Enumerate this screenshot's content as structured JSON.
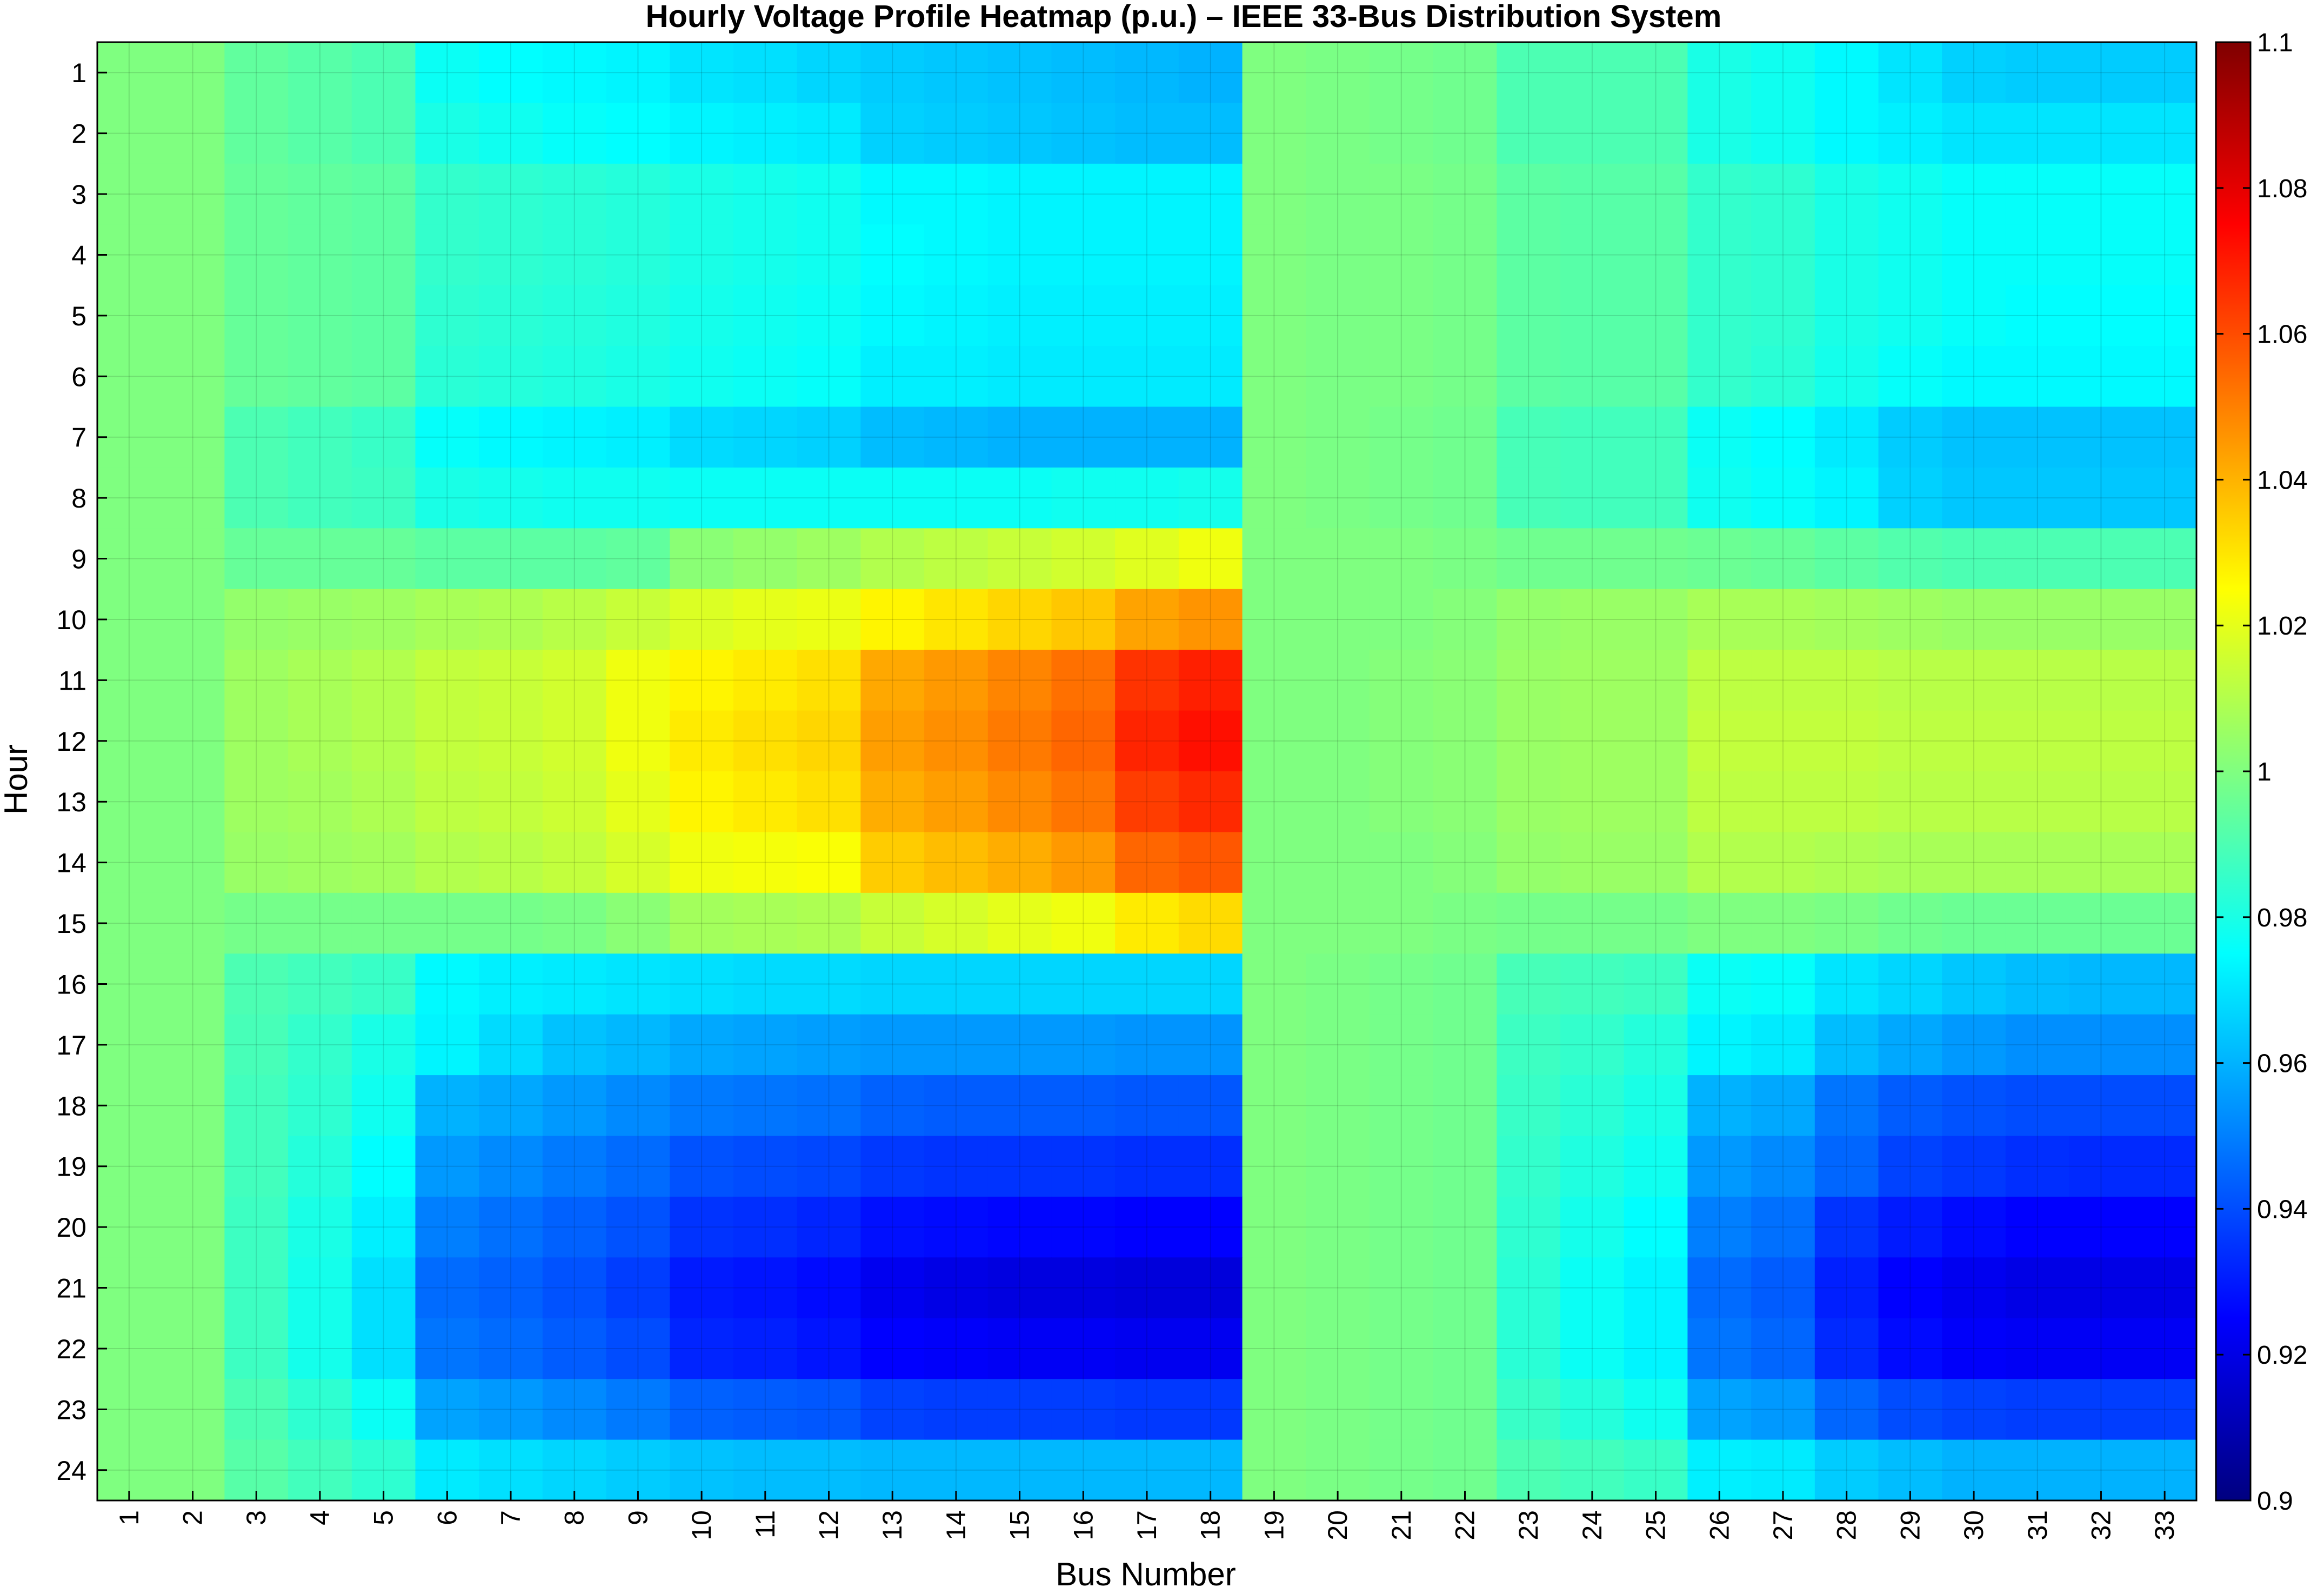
{
  "chart_data": {
    "type": "heatmap",
    "title": "Hourly Voltage Profile Heatmap (p.u.) – IEEE 33-Bus Distribution System",
    "xlabel": "Bus Number",
    "ylabel": "Hour",
    "x": [
      1,
      2,
      3,
      4,
      5,
      6,
      7,
      8,
      9,
      10,
      11,
      12,
      13,
      14,
      15,
      16,
      17,
      18,
      19,
      20,
      21,
      22,
      23,
      24,
      25,
      26,
      27,
      28,
      29,
      30,
      31,
      32,
      33
    ],
    "y": [
      1,
      2,
      3,
      4,
      5,
      6,
      7,
      8,
      9,
      10,
      11,
      12,
      13,
      14,
      15,
      16,
      17,
      18,
      19,
      20,
      21,
      22,
      23,
      24
    ],
    "grid": true,
    "colorbar": {
      "colormap": "jet",
      "position": "right",
      "clim": [
        0.9,
        1.1
      ],
      "ticks": [
        "0.9",
        "0.92",
        "0.94",
        "0.96",
        "0.98",
        "1",
        "1.02",
        "1.04",
        "1.06",
        "1.08",
        "1.1"
      ]
    },
    "values": [
      [
        1.0,
        1.0,
        0.994,
        0.992,
        0.99,
        0.977,
        0.975,
        0.974,
        0.973,
        0.97,
        0.969,
        0.967,
        0.965,
        0.964,
        0.963,
        0.962,
        0.961,
        0.96,
        1.0,
        0.999,
        0.998,
        0.997,
        0.99,
        0.99,
        0.99,
        0.98,
        0.978,
        0.974,
        0.97,
        0.966,
        0.965,
        0.965,
        0.965
      ],
      [
        1.0,
        1.0,
        0.994,
        0.992,
        0.99,
        0.98,
        0.978,
        0.976,
        0.975,
        0.973,
        0.972,
        0.971,
        0.966,
        0.965,
        0.964,
        0.963,
        0.962,
        0.962,
        1.0,
        0.999,
        0.998,
        0.997,
        0.99,
        0.99,
        0.99,
        0.98,
        0.978,
        0.974,
        0.972,
        0.97,
        0.97,
        0.97,
        0.97
      ],
      [
        1.0,
        1.0,
        0.995,
        0.994,
        0.993,
        0.985,
        0.984,
        0.983,
        0.982,
        0.98,
        0.979,
        0.978,
        0.974,
        0.974,
        0.973,
        0.973,
        0.973,
        0.973,
        1.0,
        0.999,
        0.999,
        0.998,
        0.993,
        0.992,
        0.992,
        0.985,
        0.984,
        0.98,
        0.978,
        0.976,
        0.976,
        0.976,
        0.976
      ],
      [
        1.0,
        1.0,
        0.995,
        0.994,
        0.993,
        0.985,
        0.984,
        0.983,
        0.982,
        0.98,
        0.979,
        0.978,
        0.975,
        0.974,
        0.973,
        0.973,
        0.973,
        0.973,
        1.0,
        0.999,
        0.999,
        0.998,
        0.993,
        0.992,
        0.992,
        0.985,
        0.984,
        0.98,
        0.978,
        0.976,
        0.976,
        0.976,
        0.976
      ],
      [
        1.0,
        1.0,
        0.995,
        0.994,
        0.993,
        0.984,
        0.983,
        0.982,
        0.981,
        0.979,
        0.978,
        0.977,
        0.974,
        0.973,
        0.972,
        0.972,
        0.972,
        0.972,
        1.0,
        0.999,
        0.999,
        0.998,
        0.993,
        0.992,
        0.992,
        0.985,
        0.984,
        0.98,
        0.978,
        0.976,
        0.975,
        0.975,
        0.975
      ],
      [
        1.0,
        1.0,
        0.995,
        0.994,
        0.993,
        0.983,
        0.982,
        0.981,
        0.98,
        0.978,
        0.977,
        0.976,
        0.972,
        0.972,
        0.971,
        0.971,
        0.971,
        0.971,
        1.0,
        0.999,
        0.999,
        0.998,
        0.993,
        0.992,
        0.992,
        0.985,
        0.983,
        0.979,
        0.976,
        0.974,
        0.974,
        0.974,
        0.974
      ],
      [
        1.0,
        1.0,
        0.99,
        0.988,
        0.986,
        0.976,
        0.974,
        0.973,
        0.972,
        0.968,
        0.967,
        0.966,
        0.962,
        0.961,
        0.96,
        0.96,
        0.96,
        0.96,
        1.0,
        0.999,
        0.998,
        0.997,
        0.989,
        0.988,
        0.988,
        0.977,
        0.975,
        0.971,
        0.965,
        0.963,
        0.963,
        0.963,
        0.963
      ],
      [
        1.0,
        1.0,
        0.99,
        0.988,
        0.987,
        0.98,
        0.979,
        0.978,
        0.978,
        0.977,
        0.977,
        0.977,
        0.977,
        0.977,
        0.977,
        0.978,
        0.978,
        0.979,
        1.0,
        0.999,
        0.998,
        0.997,
        0.989,
        0.988,
        0.988,
        0.978,
        0.976,
        0.973,
        0.966,
        0.964,
        0.964,
        0.964,
        0.964
      ],
      [
        1.0,
        1.0,
        0.995,
        0.995,
        0.995,
        0.993,
        0.993,
        0.993,
        0.994,
        1.002,
        1.004,
        1.006,
        1.01,
        1.012,
        1.014,
        1.016,
        1.019,
        1.022,
        1.0,
        1.0,
        1.0,
        0.999,
        0.997,
        0.997,
        0.997,
        0.996,
        0.995,
        0.993,
        0.991,
        0.99,
        0.99,
        0.99,
        0.99
      ],
      [
        1.0,
        1.0,
        1.004,
        1.005,
        1.006,
        1.008,
        1.009,
        1.011,
        1.014,
        1.018,
        1.02,
        1.021,
        1.027,
        1.03,
        1.033,
        1.036,
        1.043,
        1.046,
        1.0,
        1.0,
        1.0,
        1.001,
        1.004,
        1.005,
        1.005,
        1.008,
        1.008,
        1.007,
        1.006,
        1.005,
        1.005,
        1.005,
        1.005
      ],
      [
        1.0,
        1.0,
        1.006,
        1.008,
        1.01,
        1.013,
        1.014,
        1.016,
        1.022,
        1.027,
        1.029,
        1.031,
        1.042,
        1.045,
        1.049,
        1.053,
        1.065,
        1.069,
        1.0,
        1.0,
        1.001,
        1.002,
        1.005,
        1.006,
        1.006,
        1.012,
        1.012,
        1.012,
        1.011,
        1.011,
        1.011,
        1.011,
        1.011
      ],
      [
        1.0,
        1.0,
        1.006,
        1.008,
        1.01,
        1.013,
        1.014,
        1.016,
        1.022,
        1.029,
        1.031,
        1.033,
        1.044,
        1.047,
        1.051,
        1.055,
        1.068,
        1.072,
        1.0,
        1.0,
        1.001,
        1.002,
        1.005,
        1.006,
        1.006,
        1.013,
        1.013,
        1.013,
        1.012,
        1.012,
        1.012,
        1.012,
        1.012
      ],
      [
        1.0,
        1.0,
        1.006,
        1.007,
        1.009,
        1.012,
        1.013,
        1.015,
        1.02,
        1.027,
        1.029,
        1.031,
        1.041,
        1.044,
        1.048,
        1.052,
        1.063,
        1.067,
        1.0,
        1.0,
        1.001,
        1.002,
        1.005,
        1.006,
        1.006,
        1.012,
        1.012,
        1.012,
        1.011,
        1.011,
        1.011,
        1.011,
        1.011
      ],
      [
        1.0,
        1.0,
        1.005,
        1.006,
        1.007,
        1.01,
        1.011,
        1.013,
        1.017,
        1.022,
        1.023,
        1.024,
        1.035,
        1.038,
        1.041,
        1.045,
        1.055,
        1.058,
        1.0,
        1.0,
        1.0,
        1.001,
        1.004,
        1.005,
        1.005,
        1.01,
        1.01,
        1.009,
        1.008,
        1.008,
        1.008,
        1.008,
        1.008
      ],
      [
        1.0,
        1.0,
        0.998,
        0.998,
        0.998,
        0.998,
        0.998,
        0.999,
        1.002,
        1.007,
        1.008,
        1.009,
        1.014,
        1.017,
        1.02,
        1.022,
        1.029,
        1.032,
        1.0,
        1.0,
        1.0,
        0.999,
        0.998,
        0.998,
        0.998,
        1.0,
        1.0,
        0.999,
        0.997,
        0.996,
        0.996,
        0.996,
        0.996
      ],
      [
        1.0,
        1.0,
        0.99,
        0.988,
        0.986,
        0.974,
        0.972,
        0.971,
        0.97,
        0.969,
        0.968,
        0.968,
        0.967,
        0.967,
        0.967,
        0.967,
        0.967,
        0.967,
        1.0,
        0.999,
        0.998,
        0.997,
        0.989,
        0.988,
        0.987,
        0.977,
        0.976,
        0.97,
        0.967,
        0.964,
        0.962,
        0.961,
        0.961
      ],
      [
        1.0,
        1.0,
        0.989,
        0.985,
        0.98,
        0.973,
        0.968,
        0.963,
        0.961,
        0.958,
        0.957,
        0.956,
        0.955,
        0.955,
        0.955,
        0.955,
        0.954,
        0.954,
        1.0,
        0.999,
        0.998,
        0.997,
        0.987,
        0.985,
        0.982,
        0.973,
        0.971,
        0.962,
        0.958,
        0.955,
        0.953,
        0.953,
        0.953
      ],
      [
        1.0,
        1.0,
        0.988,
        0.984,
        0.978,
        0.96,
        0.958,
        0.955,
        0.952,
        0.949,
        0.948,
        0.947,
        0.944,
        0.943,
        0.943,
        0.943,
        0.942,
        0.942,
        1.0,
        0.999,
        0.998,
        0.997,
        0.986,
        0.983,
        0.98,
        0.96,
        0.958,
        0.948,
        0.943,
        0.941,
        0.94,
        0.94,
        0.94
      ],
      [
        1.0,
        1.0,
        0.988,
        0.982,
        0.975,
        0.955,
        0.952,
        0.949,
        0.946,
        0.941,
        0.94,
        0.939,
        0.936,
        0.935,
        0.935,
        0.935,
        0.934,
        0.934,
        1.0,
        0.999,
        0.998,
        0.997,
        0.985,
        0.981,
        0.978,
        0.955,
        0.952,
        0.945,
        0.938,
        0.936,
        0.934,
        0.933,
        0.933
      ],
      [
        1.0,
        1.0,
        0.987,
        0.98,
        0.972,
        0.95,
        0.947,
        0.944,
        0.941,
        0.935,
        0.934,
        0.932,
        0.928,
        0.927,
        0.926,
        0.926,
        0.925,
        0.925,
        1.0,
        0.999,
        0.998,
        0.997,
        0.984,
        0.979,
        0.975,
        0.95,
        0.947,
        0.935,
        0.93,
        0.927,
        0.925,
        0.925,
        0.925
      ],
      [
        1.0,
        1.0,
        0.987,
        0.979,
        0.969,
        0.946,
        0.944,
        0.941,
        0.937,
        0.93,
        0.929,
        0.927,
        0.922,
        0.92,
        0.919,
        0.919,
        0.918,
        0.918,
        1.0,
        0.999,
        0.998,
        0.997,
        0.983,
        0.977,
        0.973,
        0.946,
        0.943,
        0.931,
        0.925,
        0.922,
        0.92,
        0.92,
        0.92
      ],
      [
        1.0,
        1.0,
        0.987,
        0.979,
        0.969,
        0.948,
        0.946,
        0.943,
        0.94,
        0.932,
        0.931,
        0.929,
        0.925,
        0.924,
        0.923,
        0.923,
        0.922,
        0.922,
        1.0,
        0.999,
        0.998,
        0.997,
        0.983,
        0.977,
        0.973,
        0.948,
        0.945,
        0.933,
        0.927,
        0.924,
        0.923,
        0.923,
        0.923
      ],
      [
        1.0,
        1.0,
        0.99,
        0.984,
        0.977,
        0.957,
        0.955,
        0.952,
        0.949,
        0.944,
        0.943,
        0.942,
        0.938,
        0.937,
        0.937,
        0.937,
        0.936,
        0.936,
        1.0,
        0.999,
        0.998,
        0.997,
        0.986,
        0.982,
        0.978,
        0.957,
        0.955,
        0.945,
        0.94,
        0.938,
        0.937,
        0.937,
        0.937
      ],
      [
        1.0,
        1.0,
        0.992,
        0.988,
        0.984,
        0.971,
        0.969,
        0.967,
        0.965,
        0.963,
        0.962,
        0.962,
        0.961,
        0.961,
        0.961,
        0.961,
        0.961,
        0.961,
        1.0,
        0.999,
        0.998,
        0.997,
        0.99,
        0.988,
        0.986,
        0.972,
        0.971,
        0.965,
        0.962,
        0.96,
        0.96,
        0.96,
        0.96
      ]
    ]
  }
}
